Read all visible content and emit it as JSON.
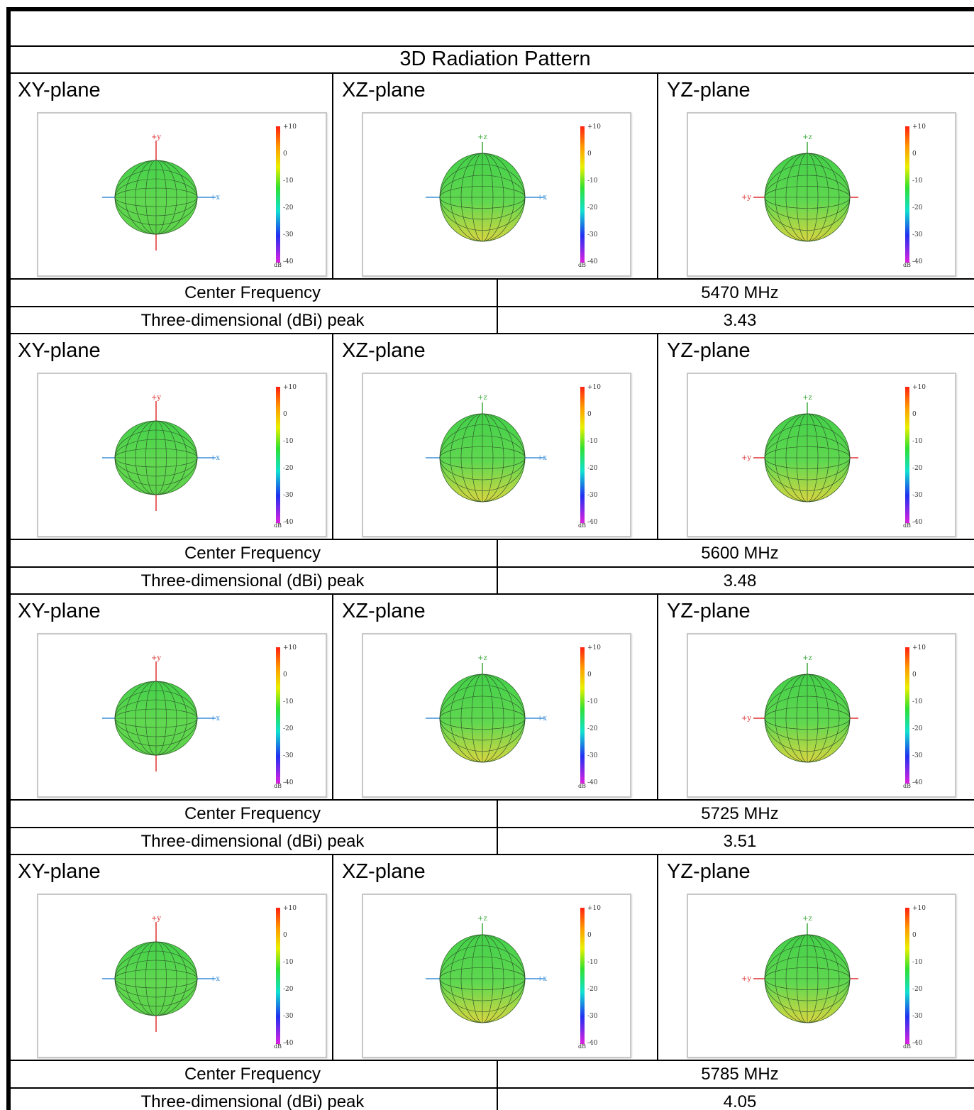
{
  "header": {
    "title": "3D Radiation Pattern"
  },
  "plot_legend": {
    "ticks": [
      "+10",
      "0",
      "-10",
      "-20",
      "-30",
      "-40"
    ],
    "unit": "dB"
  },
  "planes": [
    {
      "label": "XY-plane",
      "axes": [
        "+y",
        "+x"
      ]
    },
    {
      "label": "XZ-plane",
      "axes": [
        "+z",
        "+x"
      ]
    },
    {
      "label": "YZ-plane",
      "axes": [
        "+z",
        "+y"
      ]
    }
  ],
  "row_labels": {
    "frequency": "Center Frequency",
    "peak": "Three-dimensional (dBi) peak"
  },
  "measurements": [
    {
      "center_frequency": "5470 MHz",
      "peak": "3.43"
    },
    {
      "center_frequency": "5600 MHz",
      "peak": "3.48"
    },
    {
      "center_frequency": "5725 MHz",
      "peak": "3.51"
    },
    {
      "center_frequency": "5785 MHz",
      "peak": "4.05"
    }
  ]
}
